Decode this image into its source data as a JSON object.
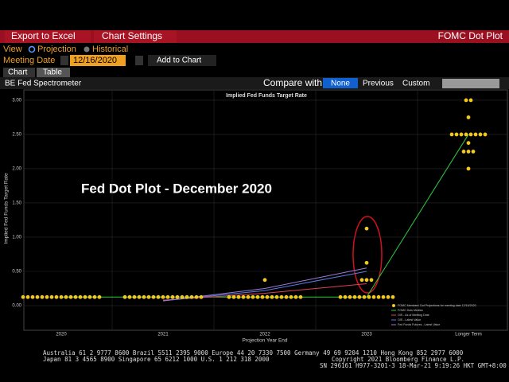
{
  "toolbar": {
    "export": "Export to Excel",
    "settings": "Chart Settings",
    "name": "FOMC Dot Plot",
    "view": "View",
    "projection": "Projection",
    "historical": "Historical",
    "meeting_label": "Meeting Date",
    "meeting_date": "12/16/2020",
    "add": "Add to Chart",
    "tabs": [
      "Chart",
      "Table"
    ],
    "source": "BE Fed Spectrometer",
    "compare": "Compare with",
    "compare_options": [
      "None",
      "Previous",
      "Custom"
    ]
  },
  "chart_data": {
    "type": "dot",
    "title": "Implied Fed Funds Target Rate",
    "annotation": "Fed Dot Plot - December 2020",
    "y_label": "Implied Fed Funds Target Rate",
    "x_label": "Projection Year End",
    "categories": [
      "2020",
      "2021",
      "2022",
      "2023",
      "Longer Term"
    ],
    "ylim": [
      -0.36,
      3.15
    ],
    "yticks": [
      {
        "value": 0,
        "label": "0.00"
      },
      {
        "value": 0.5,
        "label": "0.50"
      },
      {
        "value": 1,
        "label": "1.00"
      },
      {
        "value": 1.5,
        "label": "1.50"
      },
      {
        "value": 2,
        "label": "2.00"
      },
      {
        "value": 2.5,
        "label": "2.50"
      },
      {
        "value": 3,
        "label": "3.00"
      }
    ],
    "grid": true,
    "dots": {
      "name": "FOMC Members' Dot Projections for meeting date 12/16/2020",
      "color": "#f2c81a",
      "values": [
        [
          0.125,
          0.125,
          0.125,
          0.125,
          0.125,
          0.125,
          0.125,
          0.125,
          0.125,
          0.125,
          0.125,
          0.125,
          0.125,
          0.125,
          0.125,
          0.125,
          0.125
        ],
        [
          0.125,
          0.125,
          0.125,
          0.125,
          0.125,
          0.125,
          0.125,
          0.125,
          0.125,
          0.125,
          0.125,
          0.125,
          0.125,
          0.125,
          0.125,
          0.125,
          0.125
        ],
        [
          0.375,
          0.125,
          0.125,
          0.125,
          0.125,
          0.125,
          0.125,
          0.125,
          0.125,
          0.125,
          0.125,
          0.125,
          0.125,
          0.125,
          0.125,
          0.125,
          0.125
        ],
        [
          1.125,
          0.625,
          0.375,
          0.375,
          0.375,
          0.125,
          0.125,
          0.125,
          0.125,
          0.125,
          0.125,
          0.125,
          0.125,
          0.125,
          0.125,
          0.125,
          0.125
        ],
        [
          3,
          3,
          2.75,
          2.5,
          2.5,
          2.5,
          2.5,
          2.5,
          2.5,
          2.5,
          2.5,
          2.375,
          2.25,
          2.25,
          2.25,
          2
        ]
      ]
    },
    "series": [
      {
        "name": "FOMC Dots Median",
        "color": "#2ecc40",
        "values": [
          0.125,
          0.125,
          0.125,
          0.125,
          2.5
        ]
      },
      {
        "name": "OIS - As of Meeting Date",
        "color": "#e0405a",
        "values": [
          null,
          0.08,
          0.18,
          0.32,
          null
        ]
      },
      {
        "name": "OIS - Latest Value",
        "color": "#5a7be0",
        "values": [
          null,
          0.07,
          0.22,
          0.5,
          null
        ]
      },
      {
        "name": "Fed Funds Futures - Latest Value",
        "color": "#9a7ad8",
        "values": [
          null,
          0.07,
          0.25,
          0.55,
          null
        ]
      }
    ]
  },
  "footer": [
    "Australia 61 2 9777 8600 Brazil 5511 2395 9000 Europe 44 20 7330 7500 Germany 49 69 9204 1210 Hong Kong 852 2977 6000",
    "Japan 81 3 4565 8900      Singapore 65 6212 1000      U.S. 1 212 318 2000",
    "Copyright 2021 Bloomberg Finance L.P.",
    "SN 296161 H977-3201-3 18-Mar-21  9:19:26 HKT  GMT+8:00"
  ]
}
